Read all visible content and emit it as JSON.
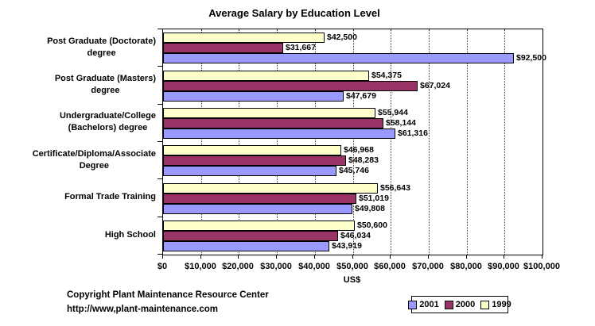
{
  "title": "Average Salary by Education Level",
  "footer": {
    "line1": "Copyright Plant Maintenance Resource Center",
    "line2": "http://www,plant-maintenance.com"
  },
  "chart_data": {
    "type": "bar",
    "orientation": "horizontal",
    "title": "Average Salary by Education Level",
    "xlabel": "US$",
    "xlim": [
      0,
      100000
    ],
    "xtick_step": 10000,
    "xtick_labels": [
      "$0",
      "$10,000",
      "$20,000",
      "$30,000",
      "$40,000",
      "$50,000",
      "$60,000",
      "$70,000",
      "$80,000",
      "$90,000",
      "$100,000"
    ],
    "grid": "vertical-dashed",
    "legend_position": "bottom-right",
    "categories": [
      "Post Graduate (Doctorate) degree",
      "Post Graduate (Masters) degree",
      "Undergraduate/College (Bachelors) degree",
      "Certificate/Diploma/Associate Degree",
      "Formal Trade Training",
      "High School"
    ],
    "category_label_lines": [
      [
        "Post Graduate (Doctorate)",
        "degree"
      ],
      [
        "Post Graduate (Masters)",
        "degree"
      ],
      [
        "Undergraduate/College",
        "(Bachelors) degree"
      ],
      [
        "Certificate/Diploma/Associate",
        "Degree"
      ],
      [
        "Formal Trade Training"
      ],
      [
        "High School"
      ]
    ],
    "series": [
      {
        "name": "2001",
        "color": "#9999FF",
        "values": [
          92500,
          47679,
          61316,
          45746,
          49808,
          43919
        ],
        "labels": [
          "$92,500",
          "$47,679",
          "$61,316",
          "$45,746",
          "$49,808",
          "$43,919"
        ]
      },
      {
        "name": "2000",
        "color": "#993366",
        "values": [
          31667,
          67024,
          58144,
          48283,
          51019,
          46034
        ],
        "labels": [
          "$31,667",
          "$67,024",
          "$58,144",
          "$48,283",
          "$51,019",
          "$46,034"
        ]
      },
      {
        "name": "1999",
        "color": "#FFFFCC",
        "values": [
          42500,
          54375,
          55944,
          46968,
          56643,
          50600
        ],
        "labels": [
          "$42,500",
          "$54,375",
          "$55,944",
          "$46,968",
          "$56,643",
          "$50,600"
        ]
      }
    ],
    "bar_order_top_to_bottom": [
      "1999",
      "2000",
      "2001"
    ]
  }
}
